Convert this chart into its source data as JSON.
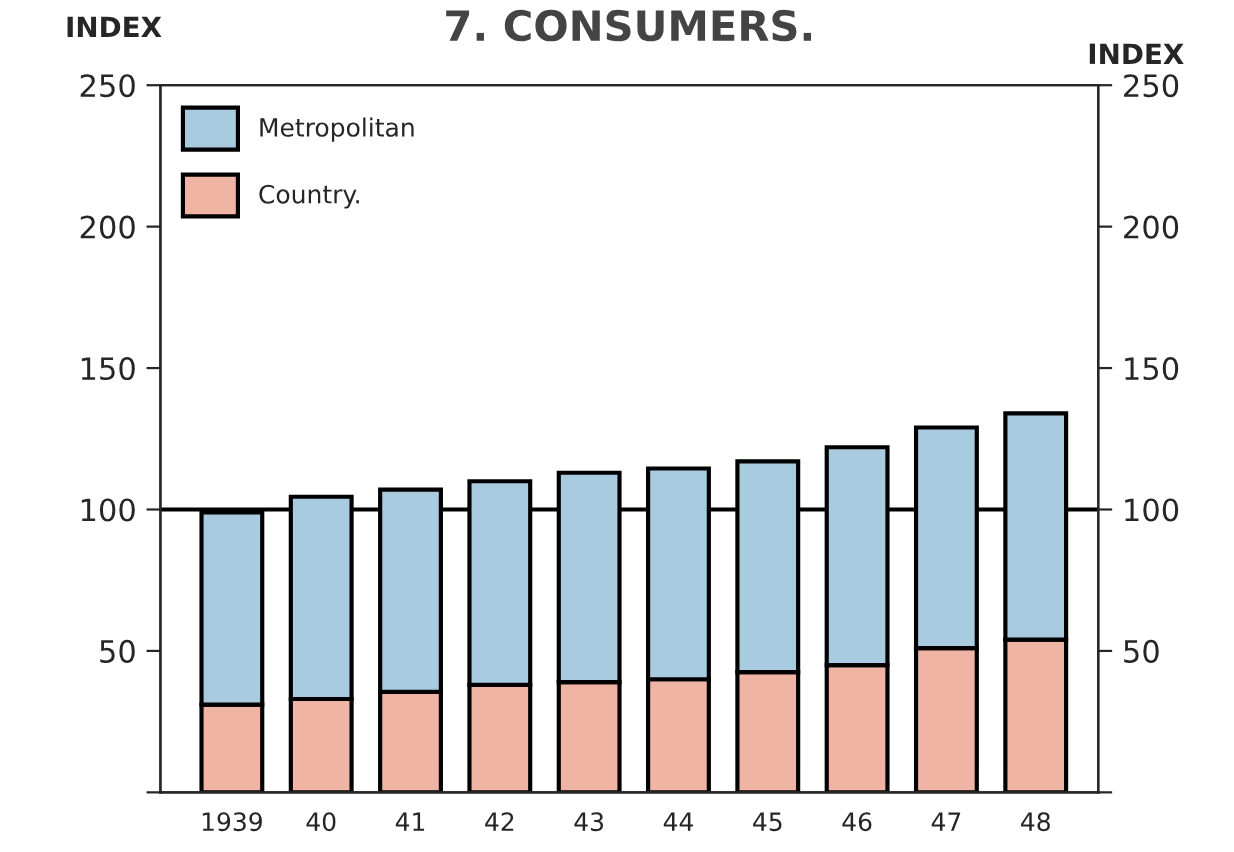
{
  "chart_data": {
    "type": "bar",
    "title": "7. CONSUMERS.",
    "ylabel": "INDEX",
    "y2label": "INDEX",
    "categories": [
      "1939",
      "40",
      "41",
      "42",
      "43",
      "44",
      "45",
      "46",
      "47",
      "48"
    ],
    "stacked": true,
    "series": [
      {
        "name": "Country.",
        "color": "#f0b4a4",
        "values": [
          31,
          33,
          35.5,
          38,
          39,
          40,
          42.5,
          45,
          51,
          54
        ]
      },
      {
        "name": "Metropolitan",
        "color": "#a9cbe0",
        "values": [
          68,
          71.5,
          71.5,
          72,
          74,
          74.5,
          74.5,
          77,
          78,
          80
        ]
      }
    ],
    "ylim": [
      0,
      250
    ],
    "yticks": [
      {
        "value": 0,
        "label": null
      },
      50,
      100,
      150,
      200,
      250
    ],
    "y2lim": [
      0,
      250
    ],
    "y2ticks": [
      {
        "value": 0,
        "label": null
      },
      50,
      100,
      150,
      200,
      250
    ],
    "ref_lines": [
      {
        "axis": "y",
        "value": 100,
        "color": "#000000"
      }
    ],
    "legend": "top left",
    "grid": false
  }
}
